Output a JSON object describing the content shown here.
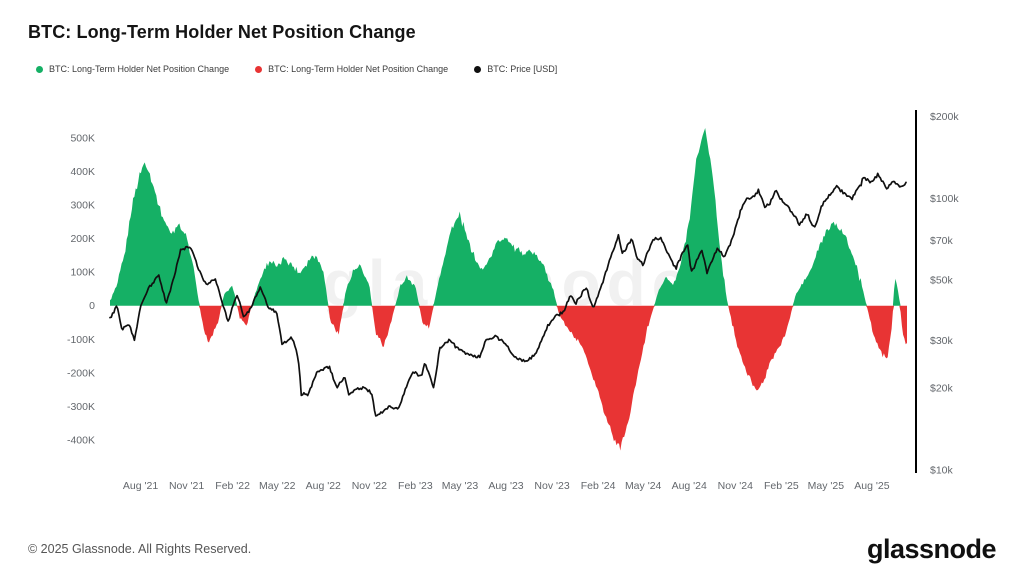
{
  "page": {
    "title": "BTC: Long-Term Holder Net Position Change",
    "watermark": "glassnode",
    "footer": {
      "copyright": "© 2025 Glassnode. All Rights Reserved.",
      "brand": "glassnode"
    }
  },
  "legend": {
    "items": [
      {
        "label": "BTC: Long-Term Holder Net Position Change",
        "color": "#15b065"
      },
      {
        "label": "BTC: Long-Term Holder Net Position Change",
        "color": "#e83434"
      },
      {
        "label": "BTC: Price [USD]",
        "color": "#101010"
      }
    ]
  },
  "chart_data": {
    "type": "area+line",
    "title": "BTC: Long-Term Holder Net Position Change",
    "grid": "off",
    "legend_position": "top-left",
    "x_range": [
      "2021-05-20",
      "2025-10-20"
    ],
    "x_ticks": [
      {
        "date": "2021-08-01",
        "label": "Aug '21"
      },
      {
        "date": "2021-11-01",
        "label": "Nov '21"
      },
      {
        "date": "2022-02-01",
        "label": "Feb '22"
      },
      {
        "date": "2022-05-01",
        "label": "May '22"
      },
      {
        "date": "2022-08-01",
        "label": "Aug '22"
      },
      {
        "date": "2022-11-01",
        "label": "Nov '22"
      },
      {
        "date": "2023-02-01",
        "label": "Feb '23"
      },
      {
        "date": "2023-05-01",
        "label": "May '23"
      },
      {
        "date": "2023-08-01",
        "label": "Aug '23"
      },
      {
        "date": "2023-11-01",
        "label": "Nov '23"
      },
      {
        "date": "2024-02-01",
        "label": "Feb '24"
      },
      {
        "date": "2024-05-01",
        "label": "May '24"
      },
      {
        "date": "2024-08-01",
        "label": "Aug '24"
      },
      {
        "date": "2024-11-01",
        "label": "Nov '24"
      },
      {
        "date": "2025-02-01",
        "label": "Feb '25"
      },
      {
        "date": "2025-05-01",
        "label": "May '25"
      },
      {
        "date": "2025-08-01",
        "label": "Aug '25"
      }
    ],
    "left_axis": {
      "name": "Net Position Change [BTC]",
      "scale": "linear",
      "lim_k": [
        -490,
        575
      ],
      "ticks": [
        {
          "value_k": 500,
          "label": "500K"
        },
        {
          "value_k": 400,
          "label": "400K"
        },
        {
          "value_k": 300,
          "label": "300K"
        },
        {
          "value_k": 200,
          "label": "200K"
        },
        {
          "value_k": 100,
          "label": "100K"
        },
        {
          "value_k": 0,
          "label": "0"
        },
        {
          "value_k": -100,
          "label": "-100K"
        },
        {
          "value_k": -200,
          "label": "-200K"
        },
        {
          "value_k": -300,
          "label": "-300K"
        },
        {
          "value_k": -400,
          "label": "-400K"
        }
      ]
    },
    "right_axis": {
      "name": "BTC: Price [USD]",
      "scale": "log",
      "lim_k_usd": [
        10,
        206
      ],
      "ticks": [
        {
          "value_k_usd": 200,
          "label": "$200k"
        },
        {
          "value_k_usd": 100,
          "label": "$100k"
        },
        {
          "value_k_usd": 70,
          "label": "$70k"
        },
        {
          "value_k_usd": 50,
          "label": "$50k"
        },
        {
          "value_k_usd": 30,
          "label": "$30k"
        },
        {
          "value_k_usd": 20,
          "label": "$20k"
        },
        {
          "value_k_usd": 10,
          "label": "$10k"
        }
      ]
    },
    "series": [
      {
        "name": "BTC: Long-Term Holder Net Position Change",
        "type": "area",
        "unit": "thousand BTC",
        "positive_color": "#15b065",
        "negative_color": "#e83434",
        "points": [
          [
            "2021-06-01",
            15
          ],
          [
            "2021-06-15",
            60
          ],
          [
            "2021-07-01",
            160
          ],
          [
            "2021-07-15",
            300
          ],
          [
            "2021-08-01",
            400
          ],
          [
            "2021-08-10",
            430
          ],
          [
            "2021-08-20",
            390
          ],
          [
            "2021-09-01",
            330
          ],
          [
            "2021-09-15",
            260
          ],
          [
            "2021-10-01",
            215
          ],
          [
            "2021-10-15",
            245
          ],
          [
            "2021-11-01",
            205
          ],
          [
            "2021-11-15",
            110
          ],
          [
            "2021-12-01",
            -40
          ],
          [
            "2021-12-15",
            -115
          ],
          [
            "2022-01-01",
            -60
          ],
          [
            "2022-01-15",
            35
          ],
          [
            "2022-02-01",
            60
          ],
          [
            "2022-02-15",
            -35
          ],
          [
            "2022-03-01",
            -60
          ],
          [
            "2022-03-15",
            25
          ],
          [
            "2022-04-01",
            95
          ],
          [
            "2022-04-15",
            135
          ],
          [
            "2022-05-01",
            115
          ],
          [
            "2022-05-15",
            145
          ],
          [
            "2022-06-01",
            120
          ],
          [
            "2022-06-15",
            95
          ],
          [
            "2022-07-01",
            135
          ],
          [
            "2022-07-15",
            155
          ],
          [
            "2022-08-01",
            110
          ],
          [
            "2022-08-15",
            -45
          ],
          [
            "2022-09-01",
            -85
          ],
          [
            "2022-09-15",
            45
          ],
          [
            "2022-10-01",
            105
          ],
          [
            "2022-10-15",
            115
          ],
          [
            "2022-11-01",
            60
          ],
          [
            "2022-11-15",
            -95
          ],
          [
            "2022-12-01",
            -115
          ],
          [
            "2022-12-15",
            -45
          ],
          [
            "2023-01-01",
            55
          ],
          [
            "2023-01-15",
            85
          ],
          [
            "2023-02-01",
            60
          ],
          [
            "2023-02-15",
            -50
          ],
          [
            "2023-03-01",
            -65
          ],
          [
            "2023-03-15",
            45
          ],
          [
            "2023-04-01",
            155
          ],
          [
            "2023-04-15",
            235
          ],
          [
            "2023-05-01",
            270
          ],
          [
            "2023-05-15",
            205
          ],
          [
            "2023-06-01",
            135
          ],
          [
            "2023-06-15",
            105
          ],
          [
            "2023-07-01",
            145
          ],
          [
            "2023-07-15",
            195
          ],
          [
            "2023-08-01",
            205
          ],
          [
            "2023-08-15",
            175
          ],
          [
            "2023-09-01",
            155
          ],
          [
            "2023-09-15",
            165
          ],
          [
            "2023-10-01",
            145
          ],
          [
            "2023-10-15",
            120
          ],
          [
            "2023-11-01",
            60
          ],
          [
            "2023-11-15",
            -25
          ],
          [
            "2023-12-01",
            -65
          ],
          [
            "2023-12-15",
            -95
          ],
          [
            "2024-01-01",
            -125
          ],
          [
            "2024-01-15",
            -185
          ],
          [
            "2024-02-01",
            -255
          ],
          [
            "2024-02-15",
            -325
          ],
          [
            "2024-03-01",
            -385
          ],
          [
            "2024-03-15",
            -430
          ],
          [
            "2024-04-01",
            -350
          ],
          [
            "2024-04-15",
            -245
          ],
          [
            "2024-05-01",
            -120
          ],
          [
            "2024-05-15",
            -40
          ],
          [
            "2024-06-01",
            45
          ],
          [
            "2024-06-15",
            85
          ],
          [
            "2024-07-01",
            60
          ],
          [
            "2024-07-15",
            125
          ],
          [
            "2024-08-01",
            255
          ],
          [
            "2024-08-15",
            430
          ],
          [
            "2024-09-01",
            530
          ],
          [
            "2024-09-15",
            415
          ],
          [
            "2024-10-01",
            175
          ],
          [
            "2024-10-15",
            20
          ],
          [
            "2024-11-01",
            -95
          ],
          [
            "2024-11-15",
            -165
          ],
          [
            "2024-12-01",
            -225
          ],
          [
            "2024-12-15",
            -255
          ],
          [
            "2025-01-01",
            -205
          ],
          [
            "2025-01-15",
            -150
          ],
          [
            "2025-02-01",
            -115
          ],
          [
            "2025-02-15",
            -55
          ],
          [
            "2025-03-01",
            30
          ],
          [
            "2025-03-15",
            65
          ],
          [
            "2025-04-01",
            105
          ],
          [
            "2025-04-15",
            165
          ],
          [
            "2025-05-01",
            215
          ],
          [
            "2025-05-15",
            250
          ],
          [
            "2025-06-01",
            230
          ],
          [
            "2025-06-15",
            180
          ],
          [
            "2025-07-01",
            120
          ],
          [
            "2025-07-15",
            40
          ],
          [
            "2025-08-01",
            -65
          ],
          [
            "2025-08-15",
            -125
          ],
          [
            "2025-09-01",
            -160
          ],
          [
            "2025-09-10",
            -60
          ],
          [
            "2025-09-16",
            90
          ],
          [
            "2025-09-24",
            30
          ],
          [
            "2025-10-01",
            -80
          ],
          [
            "2025-10-10",
            -110
          ]
        ]
      },
      {
        "name": "BTC: Price [USD]",
        "type": "line",
        "unit": "USD (thousands)",
        "color": "#101010",
        "points": [
          [
            "2021-06-01",
            36
          ],
          [
            "2021-06-15",
            40
          ],
          [
            "2021-06-25",
            33
          ],
          [
            "2021-07-10",
            34
          ],
          [
            "2021-07-20",
            30
          ],
          [
            "2021-08-01",
            40
          ],
          [
            "2021-08-15",
            46
          ],
          [
            "2021-09-06",
            52
          ],
          [
            "2021-09-21",
            41
          ],
          [
            "2021-10-01",
            47
          ],
          [
            "2021-10-12",
            56
          ],
          [
            "2021-10-20",
            64
          ],
          [
            "2021-11-08",
            67
          ],
          [
            "2021-11-26",
            54
          ],
          [
            "2021-12-10",
            48
          ],
          [
            "2021-12-28",
            50
          ],
          [
            "2022-01-10",
            42
          ],
          [
            "2022-01-23",
            35
          ],
          [
            "2022-02-09",
            44
          ],
          [
            "2022-02-23",
            37
          ],
          [
            "2022-03-08",
            39
          ],
          [
            "2022-03-29",
            47
          ],
          [
            "2022-04-12",
            40
          ],
          [
            "2022-04-30",
            38
          ],
          [
            "2022-05-11",
            29
          ],
          [
            "2022-05-30",
            31
          ],
          [
            "2022-06-12",
            26
          ],
          [
            "2022-06-18",
            19
          ],
          [
            "2022-07-02",
            19
          ],
          [
            "2022-07-20",
            23
          ],
          [
            "2022-08-13",
            24
          ],
          [
            "2022-08-28",
            20
          ],
          [
            "2022-09-12",
            22
          ],
          [
            "2022-09-21",
            19
          ],
          [
            "2022-10-05",
            20
          ],
          [
            "2022-10-25",
            20
          ],
          [
            "2022-11-07",
            19
          ],
          [
            "2022-11-12",
            16
          ],
          [
            "2022-11-21",
            16
          ],
          [
            "2022-12-10",
            17
          ],
          [
            "2022-12-30",
            17
          ],
          [
            "2023-01-13",
            20
          ],
          [
            "2023-01-29",
            23
          ],
          [
            "2023-02-13",
            22
          ],
          [
            "2023-02-20",
            25
          ],
          [
            "2023-03-10",
            20
          ],
          [
            "2023-03-22",
            28
          ],
          [
            "2023-04-10",
            30
          ],
          [
            "2023-04-26",
            28
          ],
          [
            "2023-05-12",
            27
          ],
          [
            "2023-06-10",
            26
          ],
          [
            "2023-06-22",
            30
          ],
          [
            "2023-07-12",
            31
          ],
          [
            "2023-08-01",
            29
          ],
          [
            "2023-08-18",
            26
          ],
          [
            "2023-09-11",
            25
          ],
          [
            "2023-10-01",
            27
          ],
          [
            "2023-10-24",
            34
          ],
          [
            "2023-11-09",
            37
          ],
          [
            "2023-11-24",
            38
          ],
          [
            "2023-12-08",
            44
          ],
          [
            "2023-12-18",
            41
          ],
          [
            "2024-01-08",
            47
          ],
          [
            "2024-01-23",
            39
          ],
          [
            "2024-02-12",
            50
          ],
          [
            "2024-02-28",
            62
          ],
          [
            "2024-03-13",
            73
          ],
          [
            "2024-03-20",
            62
          ],
          [
            "2024-04-08",
            71
          ],
          [
            "2024-04-18",
            61
          ],
          [
            "2024-05-01",
            57
          ],
          [
            "2024-05-21",
            71
          ],
          [
            "2024-06-06",
            71
          ],
          [
            "2024-06-24",
            60
          ],
          [
            "2024-07-05",
            55
          ],
          [
            "2024-07-29",
            68
          ],
          [
            "2024-08-05",
            53
          ],
          [
            "2024-08-26",
            64
          ],
          [
            "2024-09-06",
            53
          ],
          [
            "2024-09-27",
            66
          ],
          [
            "2024-10-10",
            60
          ],
          [
            "2024-10-29",
            73
          ],
          [
            "2024-11-11",
            89
          ],
          [
            "2024-11-22",
            99
          ],
          [
            "2024-12-05",
            100
          ],
          [
            "2024-12-17",
            107
          ],
          [
            "2024-12-30",
            93
          ],
          [
            "2025-01-09",
            95
          ],
          [
            "2025-01-20",
            107
          ],
          [
            "2025-02-03",
            97
          ],
          [
            "2025-02-25",
            88
          ],
          [
            "2025-03-10",
            80
          ],
          [
            "2025-03-24",
            88
          ],
          [
            "2025-04-08",
            77
          ],
          [
            "2025-04-23",
            94
          ],
          [
            "2025-05-10",
            104
          ],
          [
            "2025-05-22",
            111
          ],
          [
            "2025-06-06",
            104
          ],
          [
            "2025-06-22",
            100
          ],
          [
            "2025-07-10",
            112
          ],
          [
            "2025-07-14",
            120
          ],
          [
            "2025-08-01",
            114
          ],
          [
            "2025-08-13",
            123
          ],
          [
            "2025-08-30",
            108
          ],
          [
            "2025-09-12",
            116
          ],
          [
            "2025-09-25",
            110
          ],
          [
            "2025-10-08",
            114
          ]
        ]
      }
    ]
  }
}
